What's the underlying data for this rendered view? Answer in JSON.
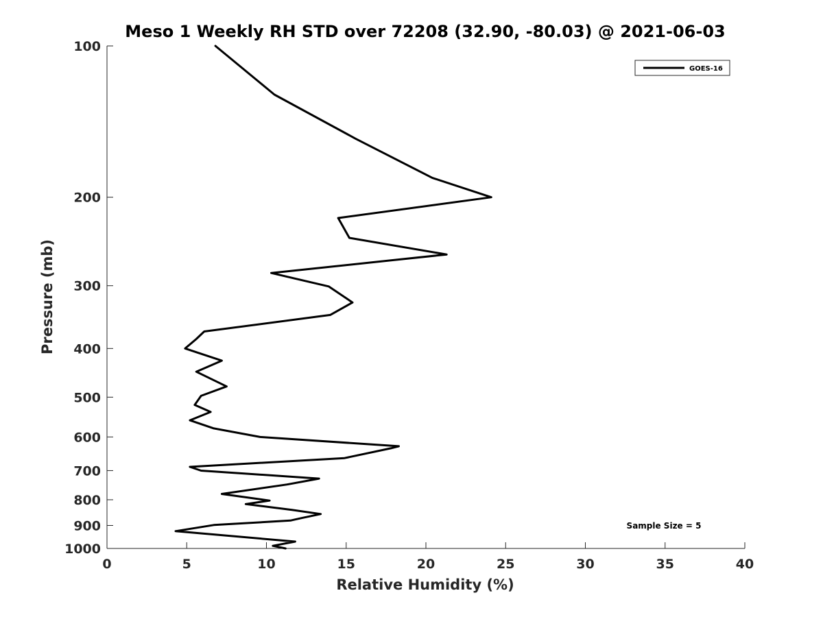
{
  "chart_data": {
    "type": "line",
    "title": "Meso 1 Weekly RH STD over 72208 (32.90, -80.03) @ 2021-06-03",
    "xlabel": "Relative Humidity (%)",
    "ylabel": "Pressure (mb)",
    "xlim": [
      0,
      40
    ],
    "ylim": [
      100,
      1000
    ],
    "y_scale": "log",
    "y_reversed": true,
    "x_ticks": [
      0,
      5,
      10,
      15,
      20,
      25,
      30,
      35,
      40
    ],
    "y_ticks": [
      100,
      200,
      300,
      400,
      500,
      600,
      700,
      800,
      900,
      1000
    ],
    "grid": false,
    "legend_position": "top-right",
    "series": [
      {
        "name": "GOES-16",
        "color": "#000000",
        "points": [
          [
            6.8,
            100
          ],
          [
            10.5,
            125
          ],
          [
            15.6,
            153
          ],
          [
            20.4,
            183
          ],
          [
            24.1,
            200
          ],
          [
            14.5,
            220
          ],
          [
            15.2,
            241
          ],
          [
            21.3,
            260
          ],
          [
            10.3,
            283
          ],
          [
            13.9,
            301
          ],
          [
            15.4,
            324
          ],
          [
            14.0,
            343
          ],
          [
            6.1,
            370
          ],
          [
            5.6,
            383
          ],
          [
            4.9,
            400
          ],
          [
            7.2,
            423
          ],
          [
            5.6,
            445
          ],
          [
            7.5,
            476
          ],
          [
            5.9,
            497
          ],
          [
            5.5,
            518
          ],
          [
            6.5,
            535
          ],
          [
            5.2,
            556
          ],
          [
            6.7,
            577
          ],
          [
            9.6,
            600
          ],
          [
            18.3,
            626
          ],
          [
            17.8,
            632
          ],
          [
            14.9,
            661
          ],
          [
            5.2,
            688
          ],
          [
            5.9,
            700
          ],
          [
            13.3,
            726
          ],
          [
            11.3,
            746
          ],
          [
            7.2,
            779
          ],
          [
            10.2,
            803
          ],
          [
            8.7,
            816
          ],
          [
            11.6,
            838
          ],
          [
            13.4,
            854
          ],
          [
            12.2,
            870
          ],
          [
            11.5,
            880
          ],
          [
            6.7,
            898
          ],
          [
            4.3,
            924
          ],
          [
            11.8,
            969
          ],
          [
            10.4,
            988
          ],
          [
            11.2,
            1000
          ]
        ]
      }
    ],
    "annotation": "Sample Size = 5"
  }
}
